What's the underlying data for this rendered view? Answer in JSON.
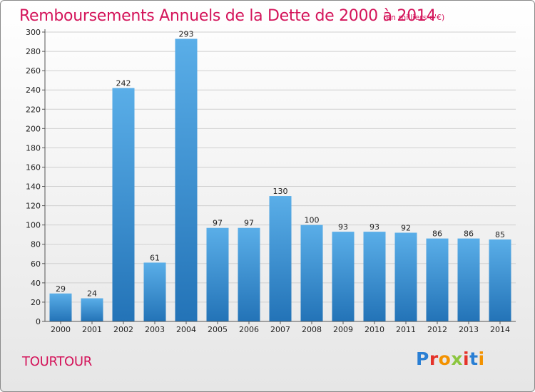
{
  "header": {
    "title": "Remboursements Annuels de la Dette de 2000 à 2014",
    "unit_note": "(en milliers d'€)"
  },
  "footer": {
    "place": "TOURTOUR",
    "logo_text": "Proxiti",
    "logo_colors": [
      "#2a7fd4",
      "#e5332a",
      "#f39200",
      "#8cc63f",
      "#e5332a",
      "#2a7fd4",
      "#f39200"
    ]
  },
  "colors": {
    "bar_top": "#5aaee8",
    "bar_bottom": "#2373b7",
    "title": "#d4145a"
  },
  "chart_data": {
    "type": "bar",
    "categories": [
      "2000",
      "2001",
      "2002",
      "2003",
      "2004",
      "2005",
      "2006",
      "2007",
      "2008",
      "2009",
      "2010",
      "2011",
      "2012",
      "2013",
      "2014"
    ],
    "values": [
      29,
      24,
      242,
      61,
      293,
      97,
      97,
      130,
      100,
      93,
      93,
      92,
      86,
      86,
      85
    ],
    "ylim": [
      0,
      300
    ],
    "yticks": [
      0,
      20,
      40,
      60,
      80,
      100,
      120,
      140,
      160,
      180,
      200,
      220,
      240,
      260,
      280,
      300
    ],
    "grid": true
  }
}
